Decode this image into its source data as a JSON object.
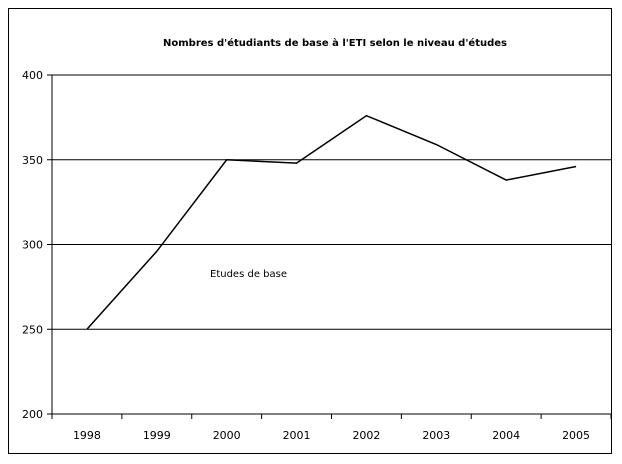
{
  "chart_data": {
    "type": "line",
    "title": "Nombres d'étudiants de base à l'ETI selon le niveau d'études",
    "categories": [
      "1998",
      "1999",
      "2000",
      "2001",
      "2002",
      "2003",
      "2004",
      "2005"
    ],
    "series": [
      {
        "name": "Etudes de base",
        "values": [
          250,
          296,
          350,
          348,
          376,
          359,
          338,
          346
        ]
      }
    ],
    "annotation": "Etudes de base",
    "ylim": [
      200,
      400
    ],
    "yticks": [
      200,
      250,
      300,
      350,
      400
    ],
    "grid": "horizontal",
    "legend": "none",
    "line_color": "#000000"
  }
}
